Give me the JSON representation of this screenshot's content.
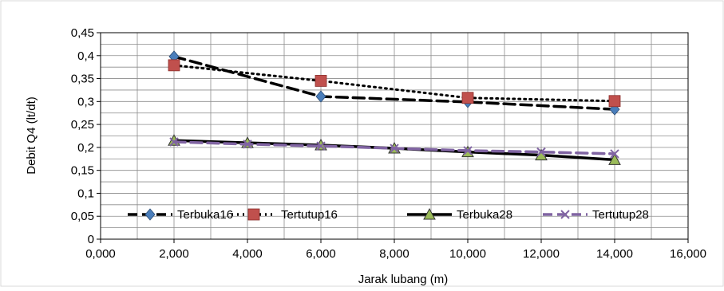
{
  "chart_data": {
    "type": "scatter",
    "title": "",
    "xlabel": "Jarak lubang (m)",
    "ylabel": "Debit Q4  (lt/dt)",
    "xlim": [
      0,
      16000
    ],
    "ylim": [
      0,
      0.45
    ],
    "x_ticks": [
      0,
      2000,
      4000,
      6000,
      8000,
      10000,
      12000,
      14000,
      16000
    ],
    "x_tick_labels": [
      "0,000",
      "2,000",
      "4,000",
      "6,000",
      "8,000",
      "10,000",
      "12,000",
      "14,000",
      "16,000"
    ],
    "y_ticks": [
      0,
      0.05,
      0.1,
      0.15,
      0.2,
      0.25,
      0.3,
      0.35,
      0.4,
      0.45
    ],
    "y_tick_labels": [
      "0",
      "0,05",
      "0,1",
      "0,15",
      "0,2",
      "0,25",
      "0,3",
      "0,35",
      "0,4",
      "0,45"
    ],
    "grid": true,
    "legend_position": "bottom-inside",
    "series": [
      {
        "name": "Terbuka16",
        "color": "#000000",
        "marker_color": "#4a7ebb",
        "marker": "diamond",
        "line_style": "dashed",
        "x": [
          2000,
          6000,
          10000,
          14000
        ],
        "y": [
          0.398,
          0.311,
          0.299,
          0.283
        ]
      },
      {
        "name": "Tertutup16",
        "color": "#000000",
        "marker_color": "#c0504d",
        "marker": "square",
        "line_style": "dotted",
        "x": [
          2000,
          6000,
          10000,
          14000
        ],
        "y": [
          0.379,
          0.345,
          0.308,
          0.301
        ]
      },
      {
        "name": "Terbuka28",
        "color": "#000000",
        "marker_color": "#9bbb59",
        "marker": "triangle",
        "line_style": "solid",
        "x": [
          2000,
          4000,
          6000,
          8000,
          10000,
          12000,
          14000
        ],
        "y": [
          0.215,
          0.21,
          0.205,
          0.198,
          0.19,
          0.183,
          0.173
        ]
      },
      {
        "name": "Tertutup28",
        "color": "#8064a2",
        "marker_color": "#8064a2",
        "marker": "x",
        "line_style": "dashed",
        "x": [
          2000,
          4000,
          6000,
          8000,
          10000,
          12000,
          14000
        ],
        "y": [
          0.212,
          0.207,
          0.203,
          0.198,
          0.193,
          0.19,
          0.186
        ]
      }
    ]
  }
}
